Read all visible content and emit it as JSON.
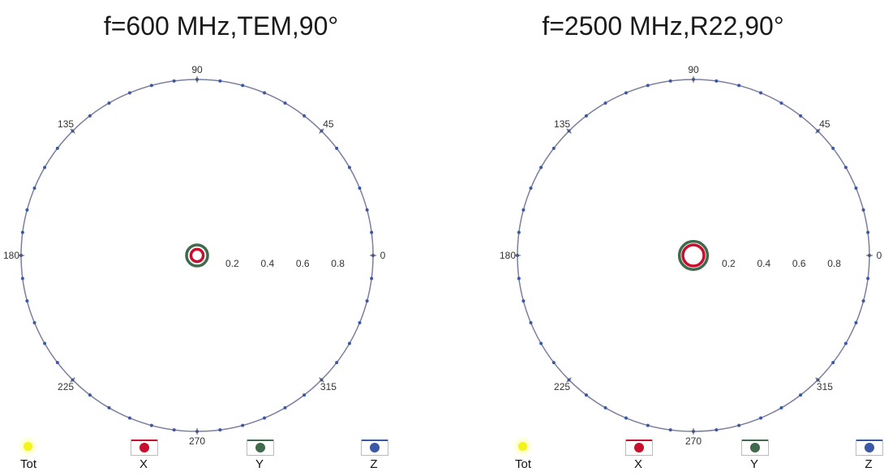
{
  "colors": {
    "tot": "#f4f41c",
    "x": "#c8102e",
    "y": "#3f6b4c",
    "z": "#3b58a6",
    "circle": "#7b7f9e",
    "text": "#1a1a1a"
  },
  "legend": [
    {
      "key": "tot",
      "label": "Tot"
    },
    {
      "key": "x",
      "label": "X"
    },
    {
      "key": "y",
      "label": "Y"
    },
    {
      "key": "z",
      "label": "Z"
    }
  ],
  "chart_data": [
    {
      "type": "polar",
      "title": "f=600 MHz,TEM,90°",
      "angle_labels": [
        "0",
        "45",
        "90",
        "135",
        "180",
        "225",
        "270",
        "315"
      ],
      "radial_ticks": [
        "0.2",
        "0.4",
        "0.6",
        "0.8"
      ],
      "radial_range": [
        0,
        1
      ],
      "series": [
        {
          "name": "Z",
          "r": 1.0
        },
        {
          "name": "Y",
          "r": 0.06
        },
        {
          "name": "X",
          "r": 0.035
        }
      ]
    },
    {
      "type": "polar",
      "title": "f=2500 MHz,R22,90°",
      "angle_labels": [
        "0",
        "45",
        "90",
        "135",
        "180",
        "225",
        "270",
        "315"
      ],
      "radial_ticks": [
        "0.2",
        "0.4",
        "0.6",
        "0.8"
      ],
      "radial_range": [
        0,
        1
      ],
      "series": [
        {
          "name": "Z",
          "r": 1.0
        },
        {
          "name": "Y",
          "r": 0.08
        },
        {
          "name": "X",
          "r": 0.06
        }
      ]
    }
  ]
}
